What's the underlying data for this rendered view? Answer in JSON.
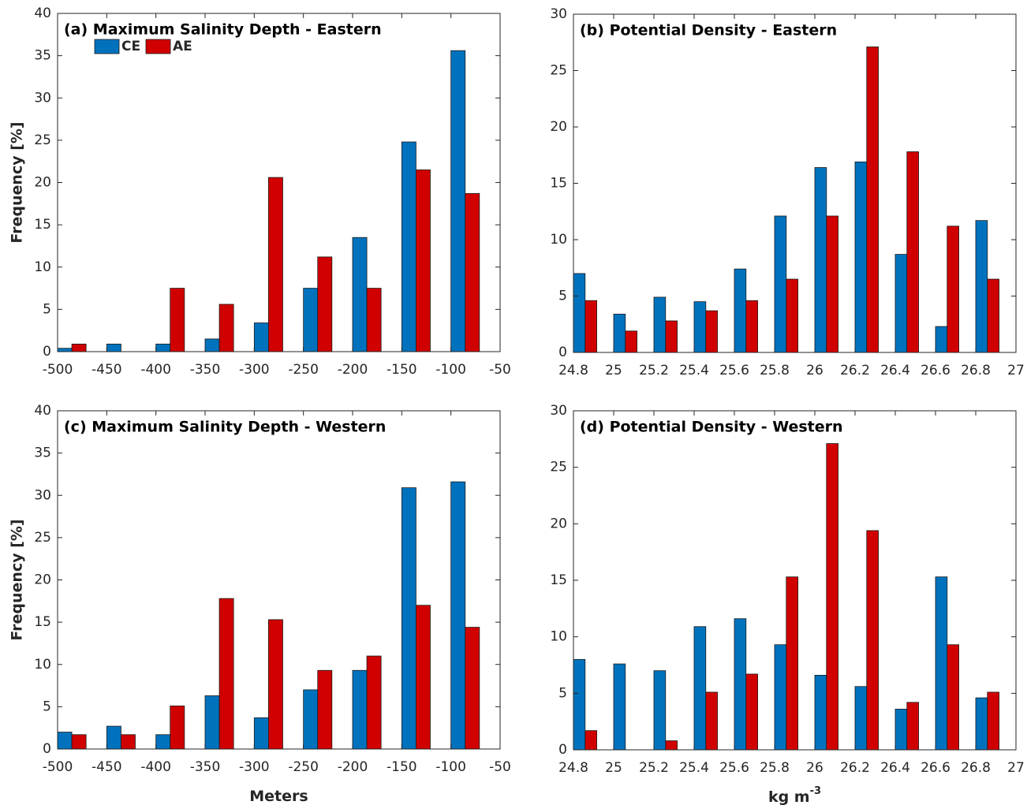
{
  "chart_data": [
    {
      "type": "bar",
      "title": "(a) Maximum Salinity Depth - Eastern",
      "ylabel": "Frequency [%]",
      "x": [
        -500,
        -450,
        -400,
        -350,
        -300,
        -250,
        -200,
        -150,
        -100
      ],
      "series": [
        {
          "name": "CE",
          "color": "#0072bd",
          "values": [
            0.4,
            0.9,
            0.9,
            1.5,
            3.4,
            7.5,
            13.5,
            24.8,
            35.6
          ]
        },
        {
          "name": "AE",
          "color": "#d00000",
          "values": [
            0.9,
            0,
            7.5,
            5.6,
            20.6,
            11.2,
            7.5,
            21.5,
            18.7
          ]
        }
      ],
      "xlim": [
        -500,
        -50
      ],
      "xticks": [
        -500,
        -450,
        -400,
        -350,
        -300,
        -250,
        -200,
        -150,
        -100,
        -50
      ],
      "ylim": [
        0,
        40
      ],
      "yticks": [
        0,
        5,
        10,
        15,
        20,
        25,
        30,
        35,
        40
      ],
      "legend": "upper left"
    },
    {
      "type": "bar",
      "title": "(b) Potential Density - Eastern",
      "x": [
        24.8,
        25.0,
        25.2,
        25.4,
        25.6,
        25.8,
        26.0,
        26.2,
        26.4,
        26.6,
        26.8
      ],
      "series": [
        {
          "name": "CE",
          "color": "#0072bd",
          "values": [
            7.0,
            3.4,
            4.9,
            4.5,
            7.4,
            12.1,
            16.4,
            16.9,
            8.7,
            2.3,
            11.7
          ]
        },
        {
          "name": "AE",
          "color": "#d00000",
          "values": [
            4.6,
            1.9,
            2.8,
            3.7,
            4.6,
            6.5,
            12.1,
            27.1,
            17.8,
            11.2,
            6.5
          ]
        }
      ],
      "xlim": [
        24.8,
        27
      ],
      "xticks": [
        24.8,
        25,
        25.2,
        25.4,
        25.6,
        25.8,
        26,
        26.2,
        26.4,
        26.6,
        26.8,
        27
      ],
      "ylim": [
        0,
        30
      ],
      "yticks": [
        0,
        5,
        10,
        15,
        20,
        25,
        30
      ]
    },
    {
      "type": "bar",
      "title": "(c) Maximum Salinity Depth - Western",
      "ylabel": "Frequency [%]",
      "xlabel": "Meters",
      "x": [
        -500,
        -450,
        -400,
        -350,
        -300,
        -250,
        -200,
        -150,
        -100
      ],
      "series": [
        {
          "name": "CE",
          "color": "#0072bd",
          "values": [
            2.0,
            2.7,
            1.7,
            6.3,
            3.7,
            7.0,
            9.3,
            30.9,
            31.6
          ]
        },
        {
          "name": "AE",
          "color": "#d00000",
          "values": [
            1.7,
            1.7,
            5.1,
            17.8,
            15.3,
            9.3,
            11.0,
            17.0,
            14.4
          ]
        }
      ],
      "xlim": [
        -500,
        -50
      ],
      "xticks": [
        -500,
        -450,
        -400,
        -350,
        -300,
        -250,
        -200,
        -150,
        -100,
        -50
      ],
      "ylim": [
        0,
        40
      ],
      "yticks": [
        0,
        5,
        10,
        15,
        20,
        25,
        30,
        35,
        40
      ]
    },
    {
      "type": "bar",
      "title": "(d) Potential Density - Western",
      "xlabel": "kg m",
      "xlabel_superscript": "-3",
      "x": [
        24.8,
        25.0,
        25.2,
        25.4,
        25.6,
        25.8,
        26.0,
        26.2,
        26.4,
        26.6,
        26.8
      ],
      "series": [
        {
          "name": "CE",
          "color": "#0072bd",
          "values": [
            8.0,
            7.6,
            7.0,
            10.9,
            11.6,
            9.3,
            6.6,
            5.6,
            3.6,
            15.3,
            4.6
          ]
        },
        {
          "name": "AE",
          "color": "#d00000",
          "values": [
            1.7,
            0,
            0.8,
            5.1,
            6.7,
            15.3,
            27.1,
            19.4,
            4.2,
            9.3,
            5.1
          ]
        }
      ],
      "xlim": [
        24.8,
        27
      ],
      "xticks": [
        24.8,
        25,
        25.2,
        25.4,
        25.6,
        25.8,
        26,
        26.2,
        26.4,
        26.6,
        26.8,
        27
      ],
      "ylim": [
        0,
        30
      ],
      "yticks": [
        0,
        5,
        10,
        15,
        20,
        25,
        30
      ]
    }
  ]
}
